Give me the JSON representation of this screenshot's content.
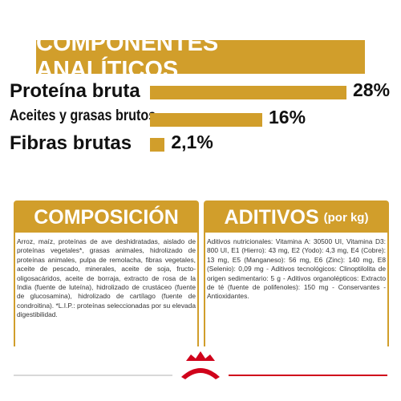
{
  "analytics": {
    "title": "COMPONENTES ANALÍTICOS",
    "items": [
      {
        "label": "Proteína bruta",
        "value": 28,
        "value_label": "28%"
      },
      {
        "label": "Aceites y grasas brutos",
        "value": 16,
        "value_label": "16%"
      },
      {
        "label": "Fibras brutas",
        "value": 2.1,
        "value_label": "2,1%"
      }
    ]
  },
  "composition": {
    "title": "COMPOSICIÓN",
    "text": "Arroz, maíz, proteínas de ave deshidratadas, aislado de proteínas vegetales*, grasas animales, hidrolizado de proteínas animales, pulpa de remolacha, fibras vegetales, aceite de pescado, minerales, aceite de soja, fructo-oligosacáridos, aceite de borraja, extracto de rosa de la India (fuente de luteína), hidrolizado de crustáceo (fuente de glucosamina), hidrolizado de cartílago (fuente de condroitina). *L.I.P.: proteínas seleccionadas por su elevada digestibilidad."
  },
  "additives": {
    "title": "ADITIVOS",
    "unit": "(por kg)",
    "text": "Aditivos nutricionales: Vitamina A: 30500 UI, Vitamina D3: 800 UI, E1 (Hierro): 43 mg, E2 (Yodo): 4,3 mg, E4 (Cobre): 13 mg, E5 (Manganeso): 56 mg, E6 (Zinc): 140 mg, E8 (Selenio): 0,09 mg - Aditivos tecnológicos: Clinoptilolita de origen sedimentario: 5 g - Aditivos organolépticos: Extracto de té (fuente de polifenoles): 150 mg - Conservantes - Antioxidantes."
  }
}
